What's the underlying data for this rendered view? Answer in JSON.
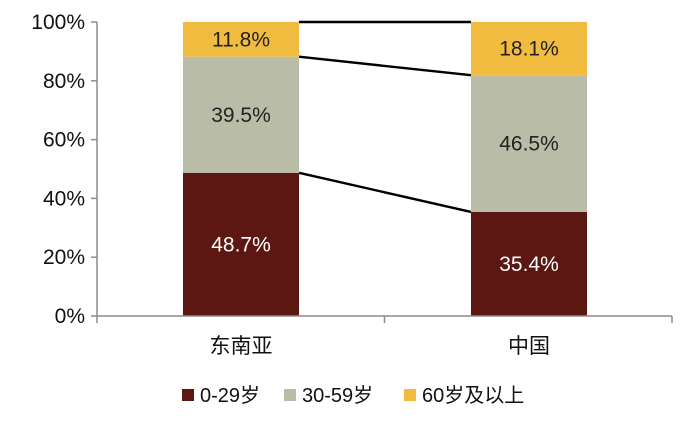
{
  "chart_data": {
    "type": "bar",
    "stacked": true,
    "normalized": true,
    "categories": [
      "东南亚",
      "中国"
    ],
    "series": [
      {
        "name": "0-29岁",
        "values": [
          48.7,
          35.4
        ],
        "color": "#5c1712",
        "label_color": "#ffffff"
      },
      {
        "name": "30-59岁",
        "values": [
          39.5,
          46.5
        ],
        "color": "#b9bca6",
        "label_color": "#222222"
      },
      {
        "name": "60岁及以上",
        "values": [
          11.8,
          18.1
        ],
        "color": "#f1bb3f",
        "label_color": "#222222"
      }
    ],
    "value_labels": [
      [
        "48.7%",
        "35.4%"
      ],
      [
        "39.5%",
        "46.5%"
      ],
      [
        "11.8%",
        "18.1%"
      ]
    ],
    "yticks": [
      "0%",
      "20%",
      "40%",
      "60%",
      "80%",
      "100%"
    ],
    "ylim": [
      0,
      100
    ],
    "connector_lines": true,
    "legend_position": "bottom",
    "grid": false,
    "title": "",
    "xlabel": "",
    "ylabel": ""
  }
}
